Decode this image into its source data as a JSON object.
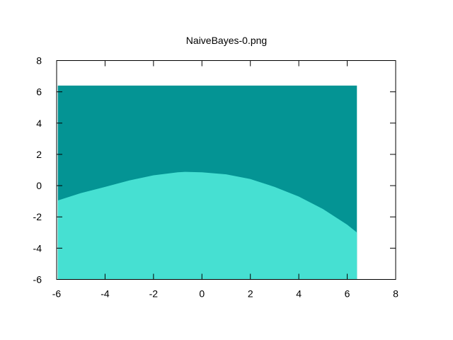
{
  "chart_data": {
    "type": "heatmap",
    "title": "NaiveBayes-0.png",
    "xlabel": "",
    "ylabel": "",
    "xlim": [
      -6,
      8
    ],
    "ylim": [
      -6,
      8
    ],
    "xticks": [
      -6,
      -4,
      -2,
      0,
      2,
      4,
      6,
      8
    ],
    "yticks": [
      -6,
      -4,
      -2,
      0,
      2,
      4,
      6,
      8
    ],
    "grid": false,
    "legend": "none",
    "region": {
      "x_min": -5.95,
      "x_max": 6.4,
      "y_min": -6,
      "y_max": 6.4
    },
    "classes": [
      {
        "label": "upper",
        "color": "#049494"
      },
      {
        "label": "lower",
        "color": "#46e0d2"
      }
    ],
    "boundary": {
      "x": [
        -5.95,
        -5,
        -4,
        -3,
        -2,
        -1,
        -0.7,
        0,
        1,
        2,
        3,
        4,
        5,
        6,
        6.4
      ],
      "y": [
        -0.95,
        -0.48,
        -0.08,
        0.33,
        0.66,
        0.85,
        0.88,
        0.85,
        0.72,
        0.42,
        -0.08,
        -0.7,
        -1.5,
        -2.5,
        -3.0
      ]
    }
  }
}
